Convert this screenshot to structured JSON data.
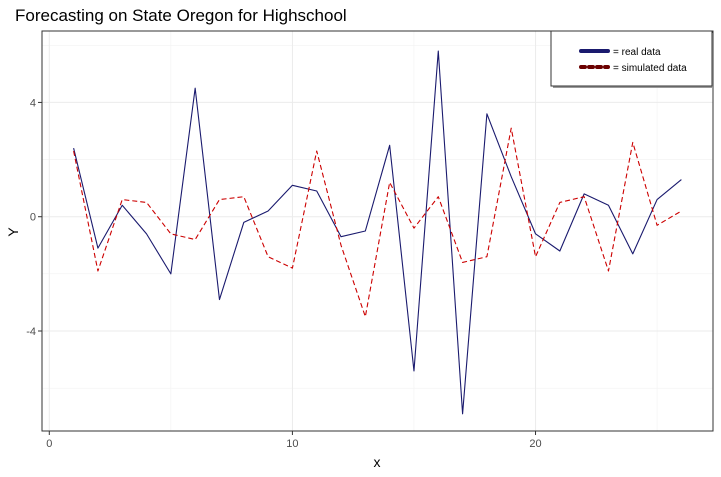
{
  "chart_data": {
    "type": "line",
    "title": "Forecasting on State Oregon for Highschool",
    "xlabel": "x",
    "ylabel": "Y",
    "xlim": [
      -0.3,
      27.3
    ],
    "ylim": [
      -7.5,
      6.5
    ],
    "xticks": [
      0,
      10,
      20
    ],
    "yticks": [
      -4,
      0,
      4
    ],
    "grid": true,
    "legend_position": "top-right",
    "x": [
      1,
      2,
      3,
      4,
      5,
      6,
      7,
      8,
      9,
      10,
      11,
      12,
      13,
      14,
      15,
      16,
      17,
      18,
      19,
      20,
      21,
      22,
      23,
      24,
      25,
      26
    ],
    "series": [
      {
        "name": "= real data",
        "color": "#1a1a6e",
        "style": "solid",
        "values": [
          2.4,
          -1.1,
          0.4,
          -0.6,
          -2.0,
          4.5,
          -2.9,
          -0.2,
          0.2,
          1.1,
          0.9,
          -0.7,
          -0.5,
          2.5,
          -5.4,
          5.8,
          -6.9,
          3.6,
          1.4,
          -0.6,
          -1.2,
          0.8,
          0.4,
          -1.3,
          0.6,
          1.3
        ]
      },
      {
        "name": "= simulated data",
        "color": "#cc0000",
        "style": "dashed",
        "values": [
          2.3,
          -1.9,
          0.6,
          0.5,
          -0.6,
          -0.8,
          0.6,
          0.7,
          -1.4,
          -1.8,
          2.3,
          -1.0,
          -3.5,
          1.2,
          -0.4,
          0.7,
          -1.6,
          -1.4,
          3.1,
          -1.4,
          0.5,
          0.7,
          -1.9,
          2.6,
          -0.3,
          0.2
        ]
      }
    ]
  }
}
